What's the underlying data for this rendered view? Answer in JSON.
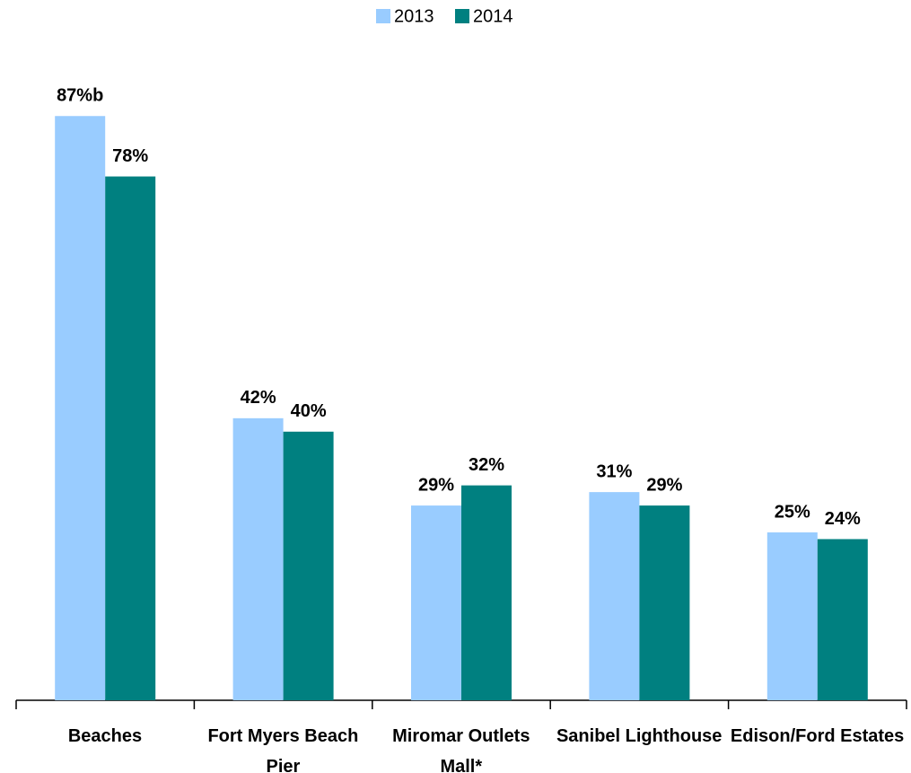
{
  "chart_data": {
    "type": "bar",
    "categories": [
      "Beaches",
      "Fort Myers Beach Pier",
      "Miromar Outlets Mall*",
      "Sanibel Lighthouse",
      "Edison/Ford Estates"
    ],
    "series": [
      {
        "name": "2013",
        "color": "#99ccff",
        "values": [
          87,
          42,
          29,
          31,
          25
        ],
        "value_labels": [
          "87%b",
          "42%",
          "29%",
          "31%",
          "25%"
        ]
      },
      {
        "name": "2014",
        "color": "#008080",
        "values": [
          78,
          40,
          32,
          29,
          24
        ],
        "value_labels": [
          "78%",
          "40%",
          "32%",
          "29%",
          "24%"
        ]
      }
    ],
    "ylim": [
      0,
      100
    ],
    "legend": "top"
  }
}
